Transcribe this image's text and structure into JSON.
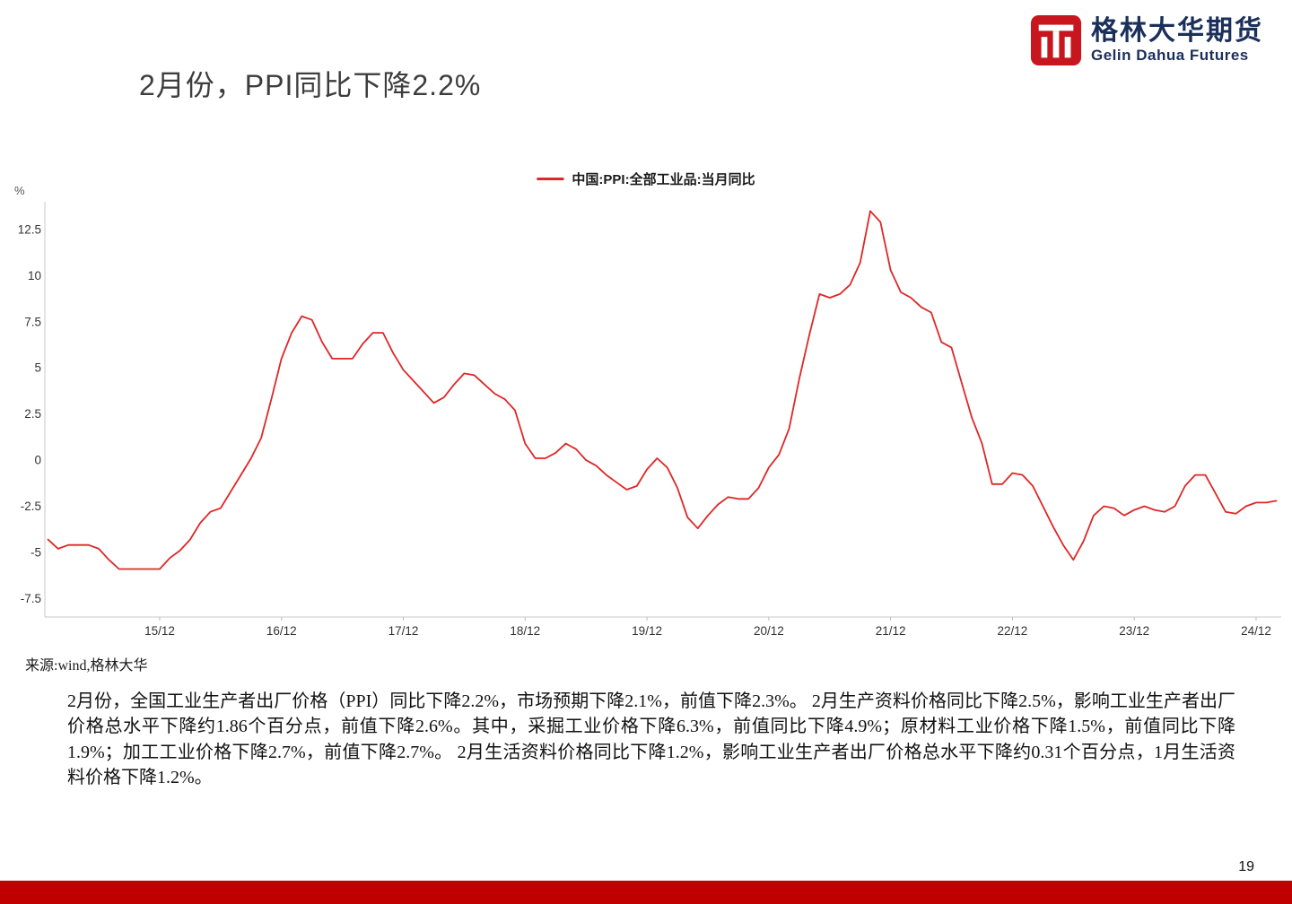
{
  "header": {
    "title": "2月份，PPI同比下降2.2%",
    "logo": {
      "brand_cn": "格林大华期货",
      "brand_en": "Gelin Dahua Futures",
      "icon_color": "#c8161e",
      "text_color": "#1b2f5b"
    }
  },
  "chart_data": {
    "type": "line",
    "title": "",
    "ylabel": "%",
    "grid": false,
    "legend_position": "top-center",
    "ylim": [
      -8.5,
      14.0
    ],
    "yticks": [
      "12.5",
      "10",
      "7.5",
      "5",
      "2.5",
      "0",
      "-2.5",
      "-5",
      "-7.5"
    ],
    "ytick_values": [
      12.5,
      10,
      7.5,
      5,
      2.5,
      0,
      -2.5,
      -5,
      -7.5
    ],
    "xtick_labels": [
      "15/12",
      "16/12",
      "17/12",
      "18/12",
      "19/12",
      "20/12",
      "21/12",
      "22/12",
      "23/12",
      "24/12"
    ],
    "xtick_month_indices": [
      11,
      23,
      35,
      47,
      59,
      71,
      83,
      95,
      107,
      119
    ],
    "x_start": "2015-01",
    "x_end": "2025-02",
    "series": [
      {
        "name": "中国:PPI:全部工业品:当月同比",
        "color": "#e02626",
        "values": [
          -4.3,
          -4.8,
          -4.6,
          -4.6,
          -4.6,
          -4.8,
          -5.4,
          -5.9,
          -5.9,
          -5.9,
          -5.9,
          -5.9,
          -5.3,
          -4.9,
          -4.3,
          -3.4,
          -2.8,
          -2.6,
          -1.7,
          -0.8,
          0.1,
          1.2,
          3.3,
          5.5,
          6.9,
          7.8,
          7.6,
          6.4,
          5.5,
          5.5,
          5.5,
          6.3,
          6.9,
          6.9,
          5.8,
          4.9,
          4.3,
          3.7,
          3.1,
          3.4,
          4.1,
          4.7,
          4.6,
          4.1,
          3.6,
          3.3,
          2.7,
          0.9,
          0.1,
          0.1,
          0.4,
          0.9,
          0.6,
          0.0,
          -0.3,
          -0.8,
          -1.2,
          -1.6,
          -1.4,
          -0.5,
          0.1,
          -0.4,
          -1.5,
          -3.1,
          -3.7,
          -3.0,
          -2.4,
          -2.0,
          -2.1,
          -2.1,
          -1.5,
          -0.4,
          0.3,
          1.7,
          4.4,
          6.8,
          9.0,
          8.8,
          9.0,
          9.5,
          10.7,
          13.5,
          12.9,
          10.3,
          9.1,
          8.8,
          8.3,
          8.0,
          6.4,
          6.1,
          4.2,
          2.3,
          0.9,
          -1.3,
          -1.3,
          -0.7,
          -0.8,
          -1.4,
          -2.5,
          -3.6,
          -4.6,
          -5.4,
          -4.4,
          -3.0,
          -2.5,
          -2.6,
          -3.0,
          -2.7,
          -2.5,
          -2.7,
          -2.8,
          -2.5,
          -1.4,
          -0.8,
          -0.8,
          -1.8,
          -2.8,
          -2.9,
          -2.5,
          -2.3,
          -2.3,
          -2.2
        ]
      }
    ]
  },
  "source": "来源:wind,格林大华",
  "body": {
    "paragraph": "2月份，全国工业生产者出厂价格（PPI）同比下降2.2%，市场预期下降2.1%，前值下降2.3%。 2月生产资料价格同比下降2.5%，影响工业生产者出厂价格总水平下降约1.86个百分点，前值下降2.6%。其中，采掘工业价格下降6.3%，前值同比下降4.9%；原材料工业价格下降1.5%，前值同比下降1.9%；加工工业价格下降2.7%，前值下降2.7%。 2月生活资料价格同比下降1.2%，影响工业生产者出厂价格总水平下降约0.31个百分点，1月生活资料价格下降1.2%。"
  },
  "footer": {
    "page_number": "19",
    "bar_color": "#c00000"
  }
}
